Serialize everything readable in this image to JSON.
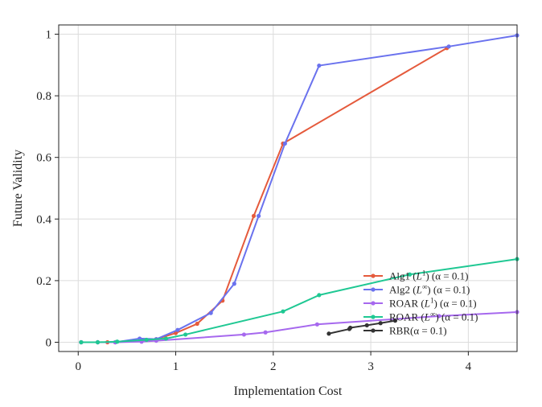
{
  "chart_data": {
    "type": "line",
    "title": "",
    "xlabel": "Implementation Cost",
    "ylabel": "Future Validity",
    "xlim": [
      -0.2,
      4.5
    ],
    "ylim": [
      -0.03,
      1.03
    ],
    "xticks": [
      0,
      1,
      2,
      3,
      4
    ],
    "xtick_labels": [
      "0",
      "1",
      "2",
      "3",
      "4"
    ],
    "yticks": [
      0,
      0.2,
      0.4,
      0.6,
      0.8,
      1
    ],
    "ytick_labels": [
      "0",
      "0.2",
      "0.4",
      "0.6",
      "0.8",
      "1"
    ],
    "grid": true,
    "legend_position": "lower-right",
    "series": [
      {
        "name": "Alg1 (L¹) (α = 0.1)",
        "name_base": "Alg1 (",
        "name_var": "L",
        "name_sup": "1",
        "name_tail": ") (α = 0.1)",
        "color": "#e55a3c",
        "x": [
          0.03,
          0.2,
          0.3,
          0.38,
          0.65,
          0.8,
          1.0,
          1.22,
          1.48,
          1.8,
          2.1,
          3.78
        ],
        "y": [
          0.0,
          0.0,
          0.0,
          0.0,
          0.005,
          0.01,
          0.03,
          0.06,
          0.135,
          0.41,
          0.645,
          0.955
        ]
      },
      {
        "name": "Alg2 (L∞) (α = 0.1)",
        "name_base": "Alg2 (",
        "name_var": "L",
        "name_sup": "∞",
        "name_tail": ") (α = 0.1)",
        "color": "#6a72ee",
        "x": [
          0.03,
          0.2,
          0.38,
          0.63,
          0.8,
          1.02,
          1.36,
          1.6,
          1.85,
          2.12,
          2.47,
          3.8,
          4.5
        ],
        "y": [
          0.0,
          0.0,
          0.0,
          0.012,
          0.01,
          0.04,
          0.095,
          0.19,
          0.41,
          0.645,
          0.898,
          0.96,
          0.996
        ]
      },
      {
        "name": "ROAR (L¹) (α = 0.1)",
        "name_base": "ROAR (",
        "name_var": "L",
        "name_sup": "1",
        "name_tail": ") (α = 0.1)",
        "color": "#a668ee",
        "x": [
          0.03,
          0.2,
          0.38,
          0.65,
          0.8,
          1.7,
          1.92,
          2.45,
          3.7,
          4.5
        ],
        "y": [
          0.0,
          0.0,
          0.0,
          0.002,
          0.005,
          0.025,
          0.032,
          0.058,
          0.085,
          0.098
        ]
      },
      {
        "name": "ROAR (L∞) (α = 0.1)",
        "name_base": "ROAR (",
        "name_var": "L",
        "name_sup": "∞",
        "name_tail": ") (α = 0.1)",
        "color": "#1fc893",
        "x": [
          0.03,
          0.2,
          0.4,
          0.7,
          0.9,
          1.1,
          2.1,
          2.47,
          3.4,
          4.5
        ],
        "y": [
          0.0,
          0.0,
          0.002,
          0.008,
          0.012,
          0.025,
          0.1,
          0.153,
          0.22,
          0.27
        ]
      },
      {
        "name": "RBR(α = 0.1)",
        "name_base": "RBR(α = 0.1)",
        "name_var": "",
        "name_sup": "",
        "name_tail": "",
        "color": "#333333",
        "x": [
          2.57,
          2.78,
          2.79,
          2.96,
          3.1,
          3.25
        ],
        "y": [
          0.028,
          0.043,
          0.047,
          0.055,
          0.062,
          0.07
        ]
      }
    ]
  }
}
